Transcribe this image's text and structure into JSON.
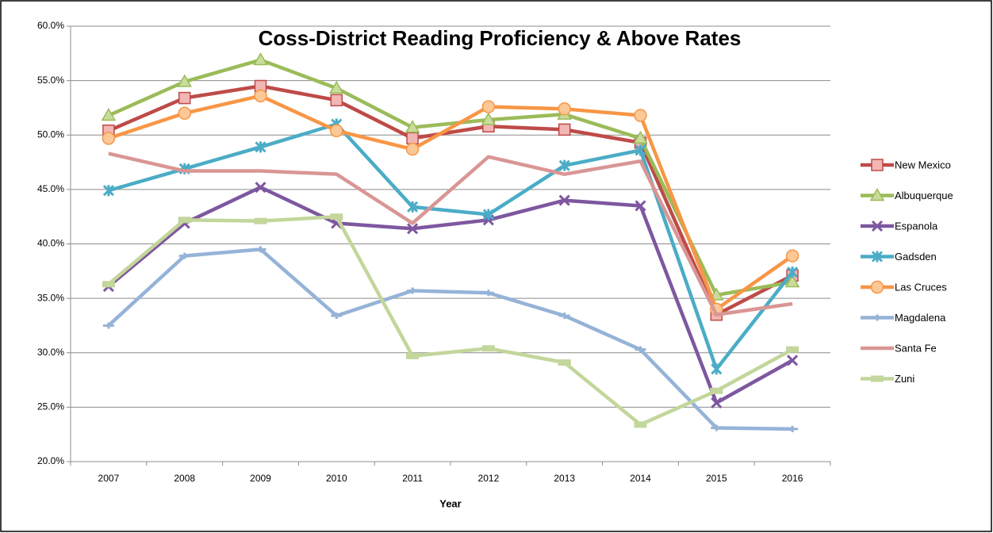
{
  "chart_data": {
    "type": "line",
    "title": "Coss-District Reading Proficiency & Above Rates",
    "x_label": "Year",
    "categories": [
      "2007",
      "2008",
      "2009",
      "2010",
      "2011",
      "2012",
      "2013",
      "2014",
      "2015",
      "2016"
    ],
    "ylim": [
      20,
      60
    ],
    "yticks": [
      {
        "value": 20,
        "label": "20.0%"
      },
      {
        "value": 25,
        "label": "25.0%"
      },
      {
        "value": 30,
        "label": "30.0%"
      },
      {
        "value": 35,
        "label": "35.0%"
      },
      {
        "value": 40,
        "label": "40.0%"
      },
      {
        "value": 45,
        "label": "45.0%"
      },
      {
        "value": 50,
        "label": "50.0%"
      },
      {
        "value": 55,
        "label": "55.0%"
      },
      {
        "value": 60,
        "label": "60.0%"
      }
    ],
    "grid": true,
    "legend": "right",
    "series": [
      {
        "name": "New Mexico",
        "color": "#be4b48",
        "marker": "square",
        "values": [
          50.4,
          53.4,
          54.5,
          53.2,
          49.7,
          50.8,
          50.5,
          49.3,
          33.5,
          37.1
        ]
      },
      {
        "name": "Albuquerque",
        "color": "#9bbb59",
        "marker": "triangle",
        "values": [
          51.8,
          54.9,
          56.9,
          54.3,
          50.7,
          51.4,
          51.9,
          49.7,
          35.3,
          36.5
        ]
      },
      {
        "name": "Espanola",
        "color": "#7e57a0",
        "marker": "x",
        "values": [
          36.1,
          41.9,
          45.2,
          41.9,
          41.4,
          42.2,
          44.0,
          43.5,
          25.4,
          29.3
        ]
      },
      {
        "name": "Gadsden",
        "color": "#4bacc6",
        "marker": "star",
        "values": [
          44.9,
          46.9,
          48.9,
          51.0,
          43.4,
          42.7,
          47.2,
          48.6,
          28.5,
          37.4
        ]
      },
      {
        "name": "Las Cruces",
        "color": "#f79646",
        "marker": "circle",
        "values": [
          49.7,
          52.0,
          53.6,
          50.4,
          48.7,
          52.6,
          52.4,
          51.8,
          34.0,
          38.9
        ]
      },
      {
        "name": "Magdalena",
        "color": "#95b3d7",
        "marker": "plus",
        "values": [
          32.5,
          38.9,
          39.5,
          33.4,
          35.7,
          35.5,
          33.4,
          30.3,
          23.1,
          23.0
        ]
      },
      {
        "name": "Santa Fe",
        "color": "#d99694",
        "marker": "none",
        "values": [
          48.3,
          46.7,
          46.7,
          46.4,
          41.9,
          48.0,
          46.4,
          47.6,
          33.5,
          34.5
        ]
      },
      {
        "name": "Zuni",
        "color": "#c3d69b",
        "marker": "dash",
        "values": [
          36.3,
          42.2,
          42.1,
          42.5,
          29.7,
          30.4,
          29.1,
          23.4,
          26.5,
          30.3
        ]
      }
    ]
  }
}
